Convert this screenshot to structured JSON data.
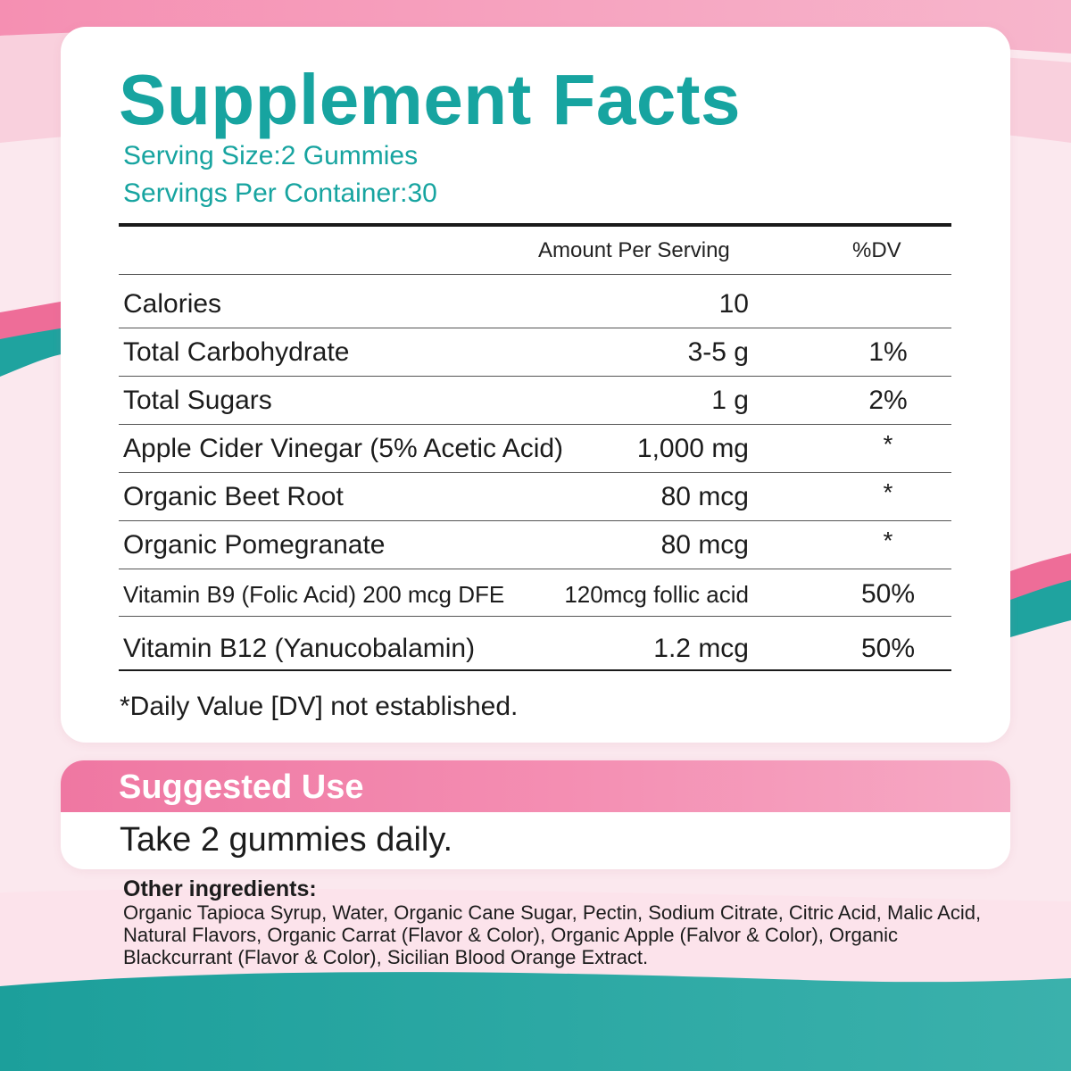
{
  "colors": {
    "teal": "#17a4a0",
    "pink": "#ef77a2",
    "text": "#1c1c1c"
  },
  "facts": {
    "title": "Supplement Facts",
    "serving_size": "Serving Size:2 Gummies",
    "servings_per_container": "Servings Per Container:30",
    "header_amount": "Amount  Per Serving",
    "header_dv": "%DV",
    "rows": [
      {
        "name": "Calories",
        "amount": "10",
        "dv": ""
      },
      {
        "name": "Total Carbohydrate",
        "amount": "3-5 g",
        "dv": "1%"
      },
      {
        "name": "Total Sugars",
        "amount": "1 g",
        "dv": "2%"
      },
      {
        "name": "Apple Cider Vinegar (5% Acetic Acid)",
        "amount": "1,000 mg",
        "dv": "*"
      },
      {
        "name": "Organic Beet Root",
        "amount": "80 mcg",
        "dv": "*"
      },
      {
        "name": "Organic Pomegranate",
        "amount": "80 mcg",
        "dv": "*"
      },
      {
        "name": "Vitamin B9 (Folic Acid) 200 mcg DFE",
        "amount": "120mcg follic acid",
        "dv": "50%"
      },
      {
        "name": "Vitamin B12 (Yanucobalamin)",
        "amount": "1.2 mcg",
        "dv": "50%"
      }
    ],
    "footnote": "*Daily Value [DV] not established."
  },
  "suggested_use": {
    "title": "Suggested Use",
    "text": "Take 2 gummies daily."
  },
  "other_ingredients": {
    "title": "Other ingredients:",
    "text": "Organic Tapioca Syrup, Water, Organic Cane Sugar, Pectin, Sodium Citrate, Citric Acid, Malic Acid, Natural Flavors, Organic Carrat (Flavor & Color), Organic Apple (Falvor & Color), Organic Blackcurrant (Flavor & Color), Sicilian Blood Orange Extract."
  }
}
